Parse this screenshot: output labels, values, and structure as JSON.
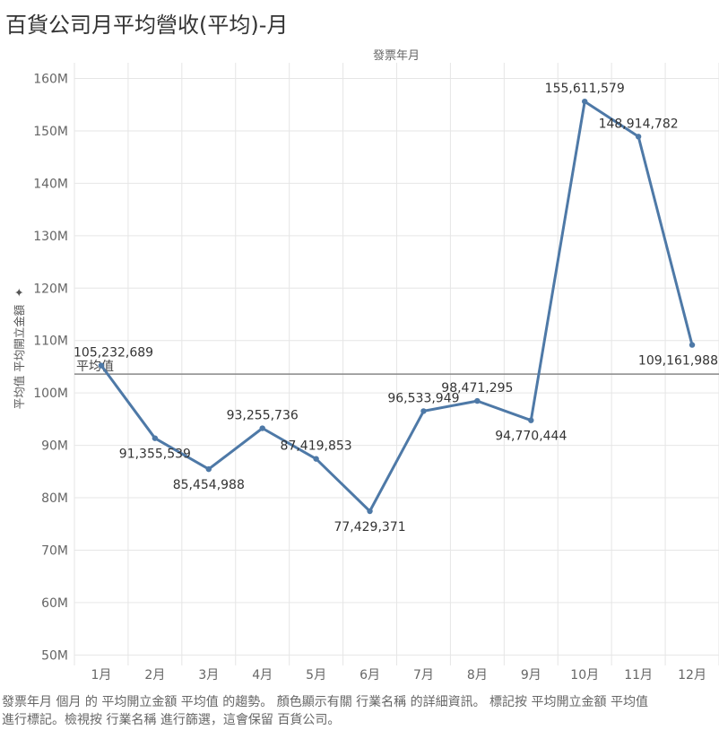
{
  "title": "百貨公司月平均營收(平均)-月",
  "caption": {
    "line1": "發票年月 個月 的 平均開立金額 平均值 的趨勢。 顏色顯示有關 行業名稱 的詳細資訊。 標記按 平均開立金額 平均值",
    "line2": "進行標記。檢視按 行業名稱 進行篩選，這會保留 百貨公司。"
  },
  "colors": {
    "line": "#4e79a7",
    "grid": "#e6e6e6",
    "reference_line": "#888888",
    "axis_text": "#666666",
    "label_text": "#333333"
  },
  "chart_data": {
    "type": "line",
    "title": "百貨公司月平均營收(平均)-月",
    "xlabel_top": "發票年月",
    "ylabel": "平均值 平均開立金額",
    "ylabel_icon": "pin-icon",
    "categories": [
      "1月",
      "2月",
      "3月",
      "4月",
      "5月",
      "6月",
      "7月",
      "8月",
      "9月",
      "10月",
      "11月",
      "12月"
    ],
    "values": [
      105232689,
      91355539,
      85454988,
      93255736,
      87419853,
      77429371,
      96533949,
      98471295,
      94770444,
      155611579,
      148914782,
      109161988
    ],
    "data_labels": [
      "105,232,689",
      "91,355,539",
      "85,454,988",
      "93,255,736",
      "87,419,853",
      "77,429,371",
      "96,533,949",
      "98,471,295",
      "94,770,444",
      "155,611,579",
      "148,914,782",
      "109,161,988"
    ],
    "label_positions": [
      "above",
      "below",
      "below",
      "above",
      "above",
      "below",
      "above",
      "above",
      "below",
      "above",
      "above",
      "below"
    ],
    "yticks": [
      50000000,
      60000000,
      70000000,
      80000000,
      90000000,
      100000000,
      110000000,
      120000000,
      130000000,
      140000000,
      150000000,
      160000000
    ],
    "ytick_labels": [
      "50M",
      "60M",
      "70M",
      "80M",
      "90M",
      "100M",
      "110M",
      "120M",
      "130M",
      "140M",
      "150M",
      "160M"
    ],
    "ylim": [
      48000000,
      163000000
    ],
    "reference_line": {
      "label": "平均值",
      "value": 103600000
    },
    "grid": true
  }
}
